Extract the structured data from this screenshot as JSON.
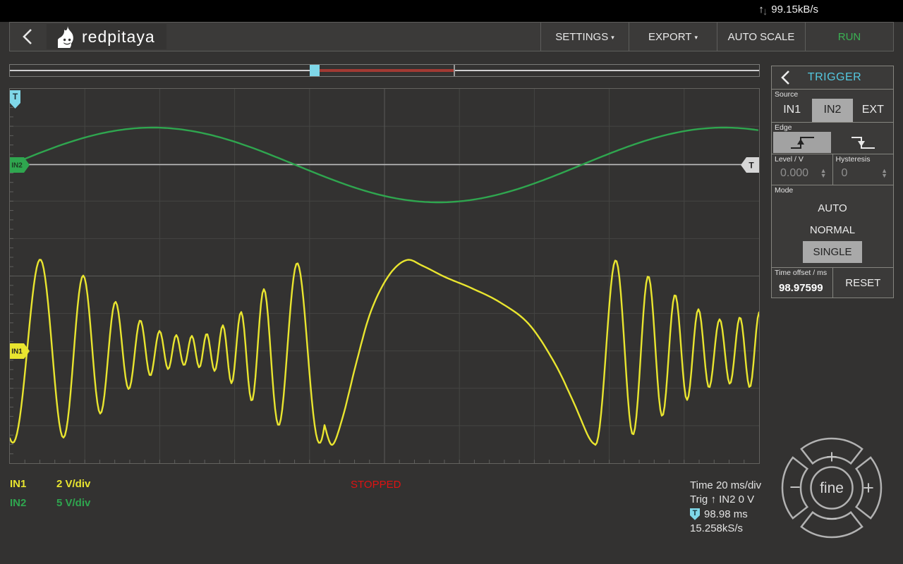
{
  "status_bar": {
    "network_rate": "99.15kB/s",
    "up_arrow": "↑",
    "down_arrow": "↓"
  },
  "header": {
    "logo_text": "redpitaya",
    "settings_label": "SETTINGS",
    "export_label": "EXPORT",
    "auto_scale_label": "AUTO SCALE",
    "run_label": "RUN",
    "run_color": "#3bb153",
    "caret": "▾"
  },
  "plot": {
    "trigger_time_marker": "T",
    "in2_marker": "IN2",
    "in1_marker": "IN1",
    "trigger_level_marker": "T",
    "in1_color": "#e9e52f",
    "in2_color": "#2fa64f",
    "trigger_cyan": "#7fd7e8"
  },
  "trigger_panel": {
    "title": "TRIGGER",
    "title_color": "#54c8e0",
    "source_label": "Source",
    "source_options": [
      {
        "label": "IN1",
        "selected": false
      },
      {
        "label": "IN2",
        "selected": true
      },
      {
        "label": "EXT",
        "selected": false
      }
    ],
    "edge_label": "Edge",
    "edge_selected": "rising",
    "level_label": "Level / V",
    "level_value": "0.000",
    "hysteresis_label": "Hysteresis",
    "hysteresis_value": "0",
    "stepper_up": "▲",
    "stepper_down": "▼",
    "mode_label": "Mode",
    "mode_options": [
      {
        "label": "AUTO",
        "selected": false
      },
      {
        "label": "NORMAL",
        "selected": false
      },
      {
        "label": "SINGLE",
        "selected": true
      }
    ],
    "time_offset_label": "Time offset / ms",
    "time_offset_value": "98.97599",
    "reset_label": "RESET"
  },
  "status": {
    "in1_name": "IN1",
    "in1_scale": "2 V/div",
    "in2_name": "IN2",
    "in2_scale": "5 V/div",
    "acquisition_state": "STOPPED",
    "stopped_color": "#e01212",
    "time_scale": "Time 20 ms/div",
    "trigger_info": "Trig ↑ IN2 0 V",
    "trigger_badge": "T",
    "trigger_time": "98.98 ms",
    "sample_rate": "15.258kS/s"
  },
  "navpad": {
    "center_label": "fine",
    "top_label": "+",
    "right_label": "+",
    "left_label": "−",
    "bottom_label": "−"
  }
}
